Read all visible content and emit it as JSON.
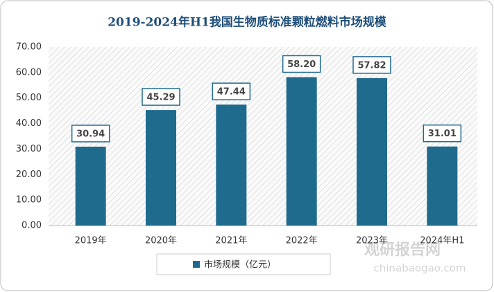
{
  "chart_data": {
    "type": "bar",
    "title": "2019-2024年H1我国生物质标准颗粒燃料市场规模",
    "categories": [
      "2019年",
      "2020年",
      "2021年",
      "2022年",
      "2023年",
      "2024年H1"
    ],
    "series": [
      {
        "name": "市场规模（亿元）",
        "color": "#1f6b8e",
        "values": [
          30.94,
          45.29,
          47.44,
          58.2,
          57.82,
          31.01
        ],
        "value_labels": [
          "30.94",
          "45.29",
          "47.44",
          "58.20",
          "57.82",
          "31.01"
        ]
      }
    ],
    "ylim": [
      0,
      70
    ],
    "yticks": [
      {
        "value": 0,
        "label": "0.00"
      },
      {
        "value": 10,
        "label": "10.00"
      },
      {
        "value": 20,
        "label": "20.00"
      },
      {
        "value": 30,
        "label": "30.00"
      },
      {
        "value": 40,
        "label": "40.00"
      },
      {
        "value": 50,
        "label": "50.00"
      },
      {
        "value": 60,
        "label": "60.00"
      },
      {
        "value": 70,
        "label": "70.00"
      }
    ],
    "legend": "bottom",
    "watermark": {
      "name": "观研报告网",
      "url": "chinabaogao.com"
    }
  }
}
